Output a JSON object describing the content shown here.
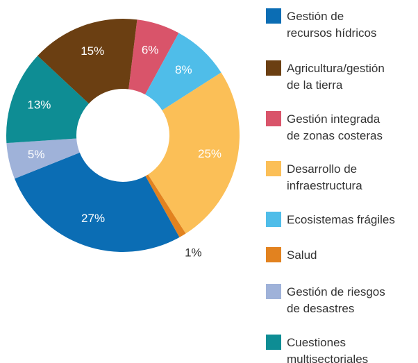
{
  "chart_data": {
    "type": "donut",
    "categories": [
      "Gestión de\nrecursos hídricos",
      "Agricultura/gestión\nde la tierra",
      "Gestión integrada\nde zonas costeras",
      "Desarrollo de\ninfraestructura",
      "Ecosistemas frágiles",
      "Salud",
      "Gestión de riesgos\nde desastres",
      "Cuestiones\nmultisectoriales"
    ],
    "values": [
      27,
      15,
      6,
      25,
      8,
      1,
      5,
      13
    ],
    "value_labels": [
      "27%",
      "15%",
      "6%",
      "25%",
      "8%",
      "1%",
      "5%",
      "13%"
    ],
    "colors": [
      "#0b6db4",
      "#6b3f12",
      "#d9546a",
      "#fbbf57",
      "#4fbde9",
      "#e2821f",
      "#9fb2d9",
      "#0e8d94"
    ],
    "legend": "right"
  }
}
